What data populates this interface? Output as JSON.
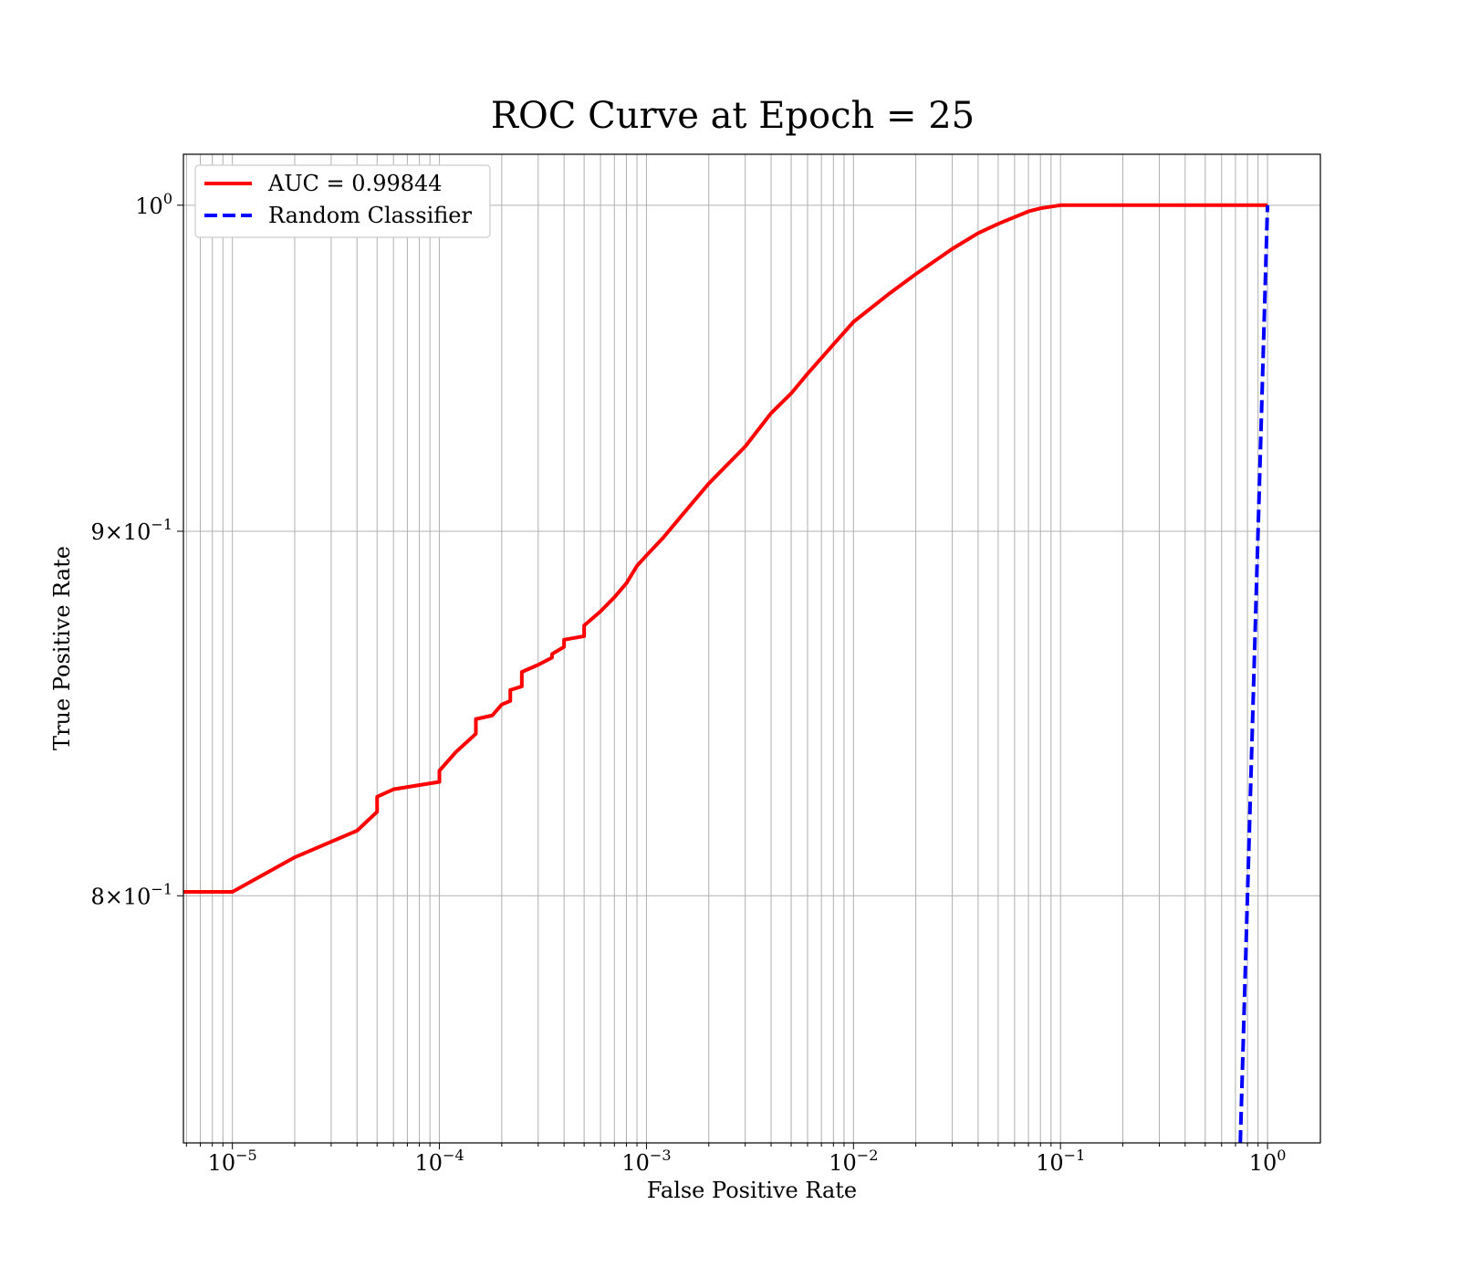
{
  "chart_data": {
    "type": "line",
    "title": "ROC Curve at Epoch = 25",
    "xlabel": "False Positive Rate",
    "ylabel": "True Positive Rate",
    "xscale": "log",
    "yscale": "log",
    "xlim": [
      5.8e-06,
      1.8
    ],
    "ylim": [
      0.7386,
      1.0166
    ],
    "grid": true,
    "legend_position": "top-left",
    "x_ticks": [
      {
        "value": 1e-05,
        "base": "10",
        "exp": "−5"
      },
      {
        "value": 0.0001,
        "base": "10",
        "exp": "−4"
      },
      {
        "value": 0.001,
        "base": "10",
        "exp": "−3"
      },
      {
        "value": 0.01,
        "base": "10",
        "exp": "−2"
      },
      {
        "value": 0.1,
        "base": "10",
        "exp": "−1"
      },
      {
        "value": 1,
        "base": "10",
        "exp": "0"
      }
    ],
    "y_ticks": [
      {
        "value": 1.0,
        "base": "10",
        "exp": "0"
      },
      {
        "value": 0.9,
        "base": "9×10",
        "exp": "−1"
      },
      {
        "value": 0.8,
        "base": "8×10",
        "exp": "−1"
      }
    ],
    "series": [
      {
        "name": "AUC = 0.99844",
        "color": "#ff0000",
        "style": "solid",
        "x": [
          5.8e-06,
          1e-05,
          2e-05,
          4e-05,
          5e-05,
          5e-05,
          6e-05,
          0.0001,
          0.0001,
          0.00012,
          0.00015,
          0.00015,
          0.00018,
          0.0002,
          0.00022,
          0.00022,
          0.00025,
          0.00025,
          0.0003,
          0.00035,
          0.00035,
          0.0004,
          0.0004,
          0.0005,
          0.0005,
          0.0006,
          0.0007,
          0.0008,
          0.0009,
          0.001,
          0.0012,
          0.0015,
          0.002,
          0.003,
          0.004,
          0.005,
          0.006,
          0.008,
          0.01,
          0.015,
          0.02,
          0.03,
          0.04,
          0.05,
          0.07,
          0.08,
          0.1,
          0.11,
          0.2,
          0.5,
          1.0
        ],
        "y": [
          0.801,
          0.801,
          0.81,
          0.817,
          0.822,
          0.826,
          0.828,
          0.83,
          0.833,
          0.838,
          0.843,
          0.847,
          0.848,
          0.851,
          0.852,
          0.855,
          0.856,
          0.86,
          0.862,
          0.864,
          0.865,
          0.867,
          0.869,
          0.87,
          0.873,
          0.877,
          0.881,
          0.885,
          0.89,
          0.893,
          0.898,
          0.905,
          0.914,
          0.925,
          0.935,
          0.941,
          0.947,
          0.956,
          0.963,
          0.972,
          0.978,
          0.986,
          0.991,
          0.994,
          0.998,
          0.999,
          1.0,
          1.0,
          1.0,
          1.0,
          1.0
        ]
      },
      {
        "name": "Random Classifier",
        "color": "#0000ff",
        "style": "dashed",
        "x": [
          0.7386,
          1.0
        ],
        "y": [
          0.7386,
          1.0
        ]
      }
    ]
  }
}
